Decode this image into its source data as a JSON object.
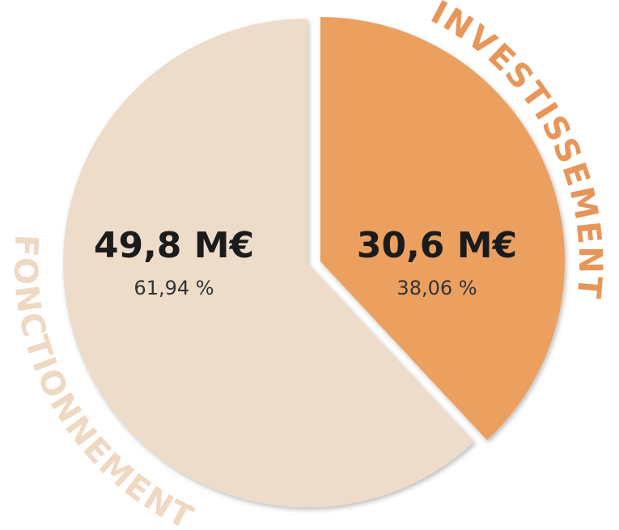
{
  "chart_data": {
    "type": "pie",
    "categories": [
      "INVESTISSEMENT",
      "FONCTIONNEMENT"
    ],
    "values": [
      30.6,
      49.8
    ],
    "value_labels": [
      "30,6 M€",
      "49,8 M€"
    ],
    "percents": [
      38.06,
      61.94
    ],
    "percent_labels": [
      "38,06 %",
      "61,94 %"
    ],
    "colors": [
      "#eba060",
      "#ecdcc9"
    ],
    "label_colors": [
      "#e8955a",
      "#efd9c3"
    ]
  }
}
